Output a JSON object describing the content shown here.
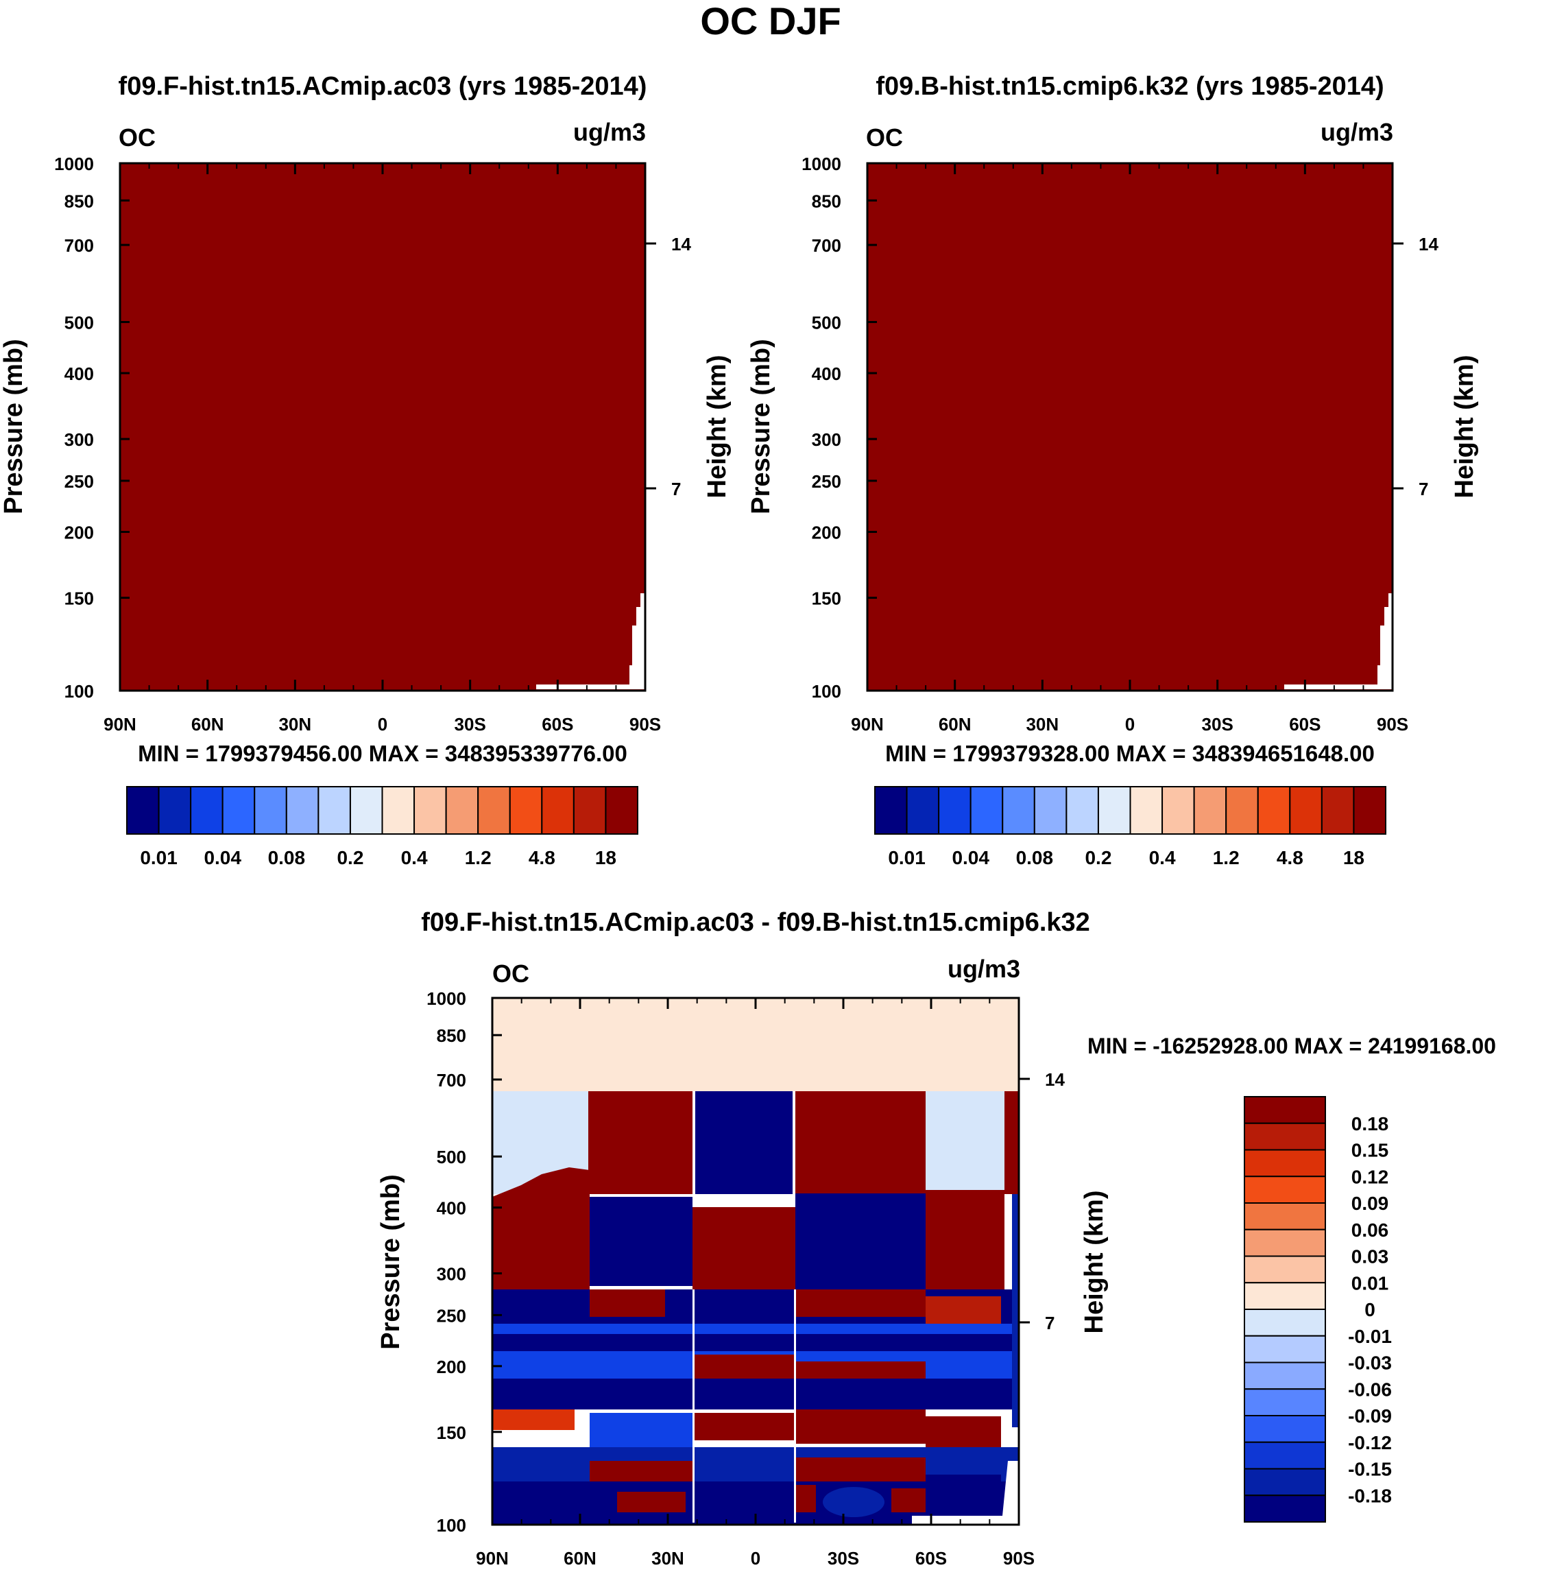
{
  "figure": {
    "title": "OC DJF"
  },
  "chart_data": [
    {
      "type": "heatmap",
      "title": "f09.F-hist.tn15.ACmip.ac03 (yrs 1985-2014)",
      "variable": "OC",
      "units": "ug/m3",
      "ylabel": "Pressure (mb)",
      "y2label": "Height (km)",
      "yticks": [
        "100",
        "150",
        "200",
        "250",
        "300",
        "400",
        "500",
        "700",
        "850",
        "1000"
      ],
      "y2ticks": [
        "14",
        "7"
      ],
      "xticks": [
        "90N",
        "60N",
        "30N",
        "0",
        "30S",
        "60S",
        "90S"
      ],
      "xlim": [
        90,
        -90
      ],
      "ylim": [
        1000,
        100
      ],
      "minmax": "MIN = 1799379456.00   MAX = 348395339776.00",
      "fill_color": "#8b0000",
      "colorbar_labels": [
        "0.01",
        "0.04",
        "0.08",
        "0.2",
        "0.4",
        "1.2",
        "4.8",
        "18"
      ],
      "colorbar_colors": [
        "#00007f",
        "#0424b4",
        "#0f41e6",
        "#2c66ff",
        "#5a8cff",
        "#8eb0ff",
        "#bcd4ff",
        "#e0ecfa",
        "#fde7d6",
        "#fbc4a6",
        "#f59c73",
        "#f07540",
        "#f24e16",
        "#dc3208",
        "#b71c08",
        "#8b0000"
      ]
    },
    {
      "type": "heatmap",
      "title": "f09.B-hist.tn15.cmip6.k32 (yrs 1985-2014)",
      "variable": "OC",
      "units": "ug/m3",
      "ylabel": "Pressure (mb)",
      "y2label": "Height (km)",
      "yticks": [
        "100",
        "150",
        "200",
        "250",
        "300",
        "400",
        "500",
        "700",
        "850",
        "1000"
      ],
      "y2ticks": [
        "14",
        "7"
      ],
      "xticks": [
        "90N",
        "60N",
        "30N",
        "0",
        "30S",
        "60S",
        "90S"
      ],
      "xlim": [
        90,
        -90
      ],
      "ylim": [
        1000,
        100
      ],
      "minmax": "MIN = 1799379328.00   MAX = 348394651648.00",
      "fill_color": "#8b0000",
      "colorbar_labels": [
        "0.01",
        "0.04",
        "0.08",
        "0.2",
        "0.4",
        "1.2",
        "4.8",
        "18"
      ],
      "colorbar_colors": [
        "#00007f",
        "#0424b4",
        "#0f41e6",
        "#2c66ff",
        "#5a8cff",
        "#8eb0ff",
        "#bcd4ff",
        "#e0ecfa",
        "#fde7d6",
        "#fbc4a6",
        "#f59c73",
        "#f07540",
        "#f24e16",
        "#dc3208",
        "#b71c08",
        "#8b0000"
      ]
    },
    {
      "type": "heatmap",
      "title": "f09.F-hist.tn15.ACmip.ac03 - f09.B-hist.tn15.cmip6.k32",
      "variable": "OC",
      "units": "ug/m3",
      "ylabel": "Pressure (mb)",
      "y2label": "Height (km)",
      "yticks": [
        "100",
        "150",
        "200",
        "250",
        "300",
        "400",
        "500",
        "700",
        "850",
        "1000"
      ],
      "y2ticks": [
        "14",
        "7"
      ],
      "xticks": [
        "90N",
        "60N",
        "30N",
        "0",
        "30S",
        "60S",
        "90S"
      ],
      "xlim": [
        90,
        -90
      ],
      "ylim": [
        1000,
        100
      ],
      "minmax": "MIN = -16252928.00   MAX = 24199168.00",
      "colorbar_labels": [
        "0.18",
        "0.15",
        "0.12",
        "0.09",
        "0.06",
        "0.03",
        "0.01",
        "0",
        "-0.01",
        "-0.03",
        "-0.06",
        "-0.09",
        "-0.12",
        "-0.15",
        "-0.18"
      ],
      "colorbar_colors": [
        "#8b0000",
        "#b71c08",
        "#dc3208",
        "#f24e16",
        "#f07540",
        "#f59c73",
        "#fbc4a6",
        "#fde7d6",
        "#d6e6fa",
        "#b4cbff",
        "#8aaaff",
        "#5885ff",
        "#2c5cf5",
        "#0f37d4",
        "#0521a8",
        "#00007f"
      ]
    }
  ]
}
